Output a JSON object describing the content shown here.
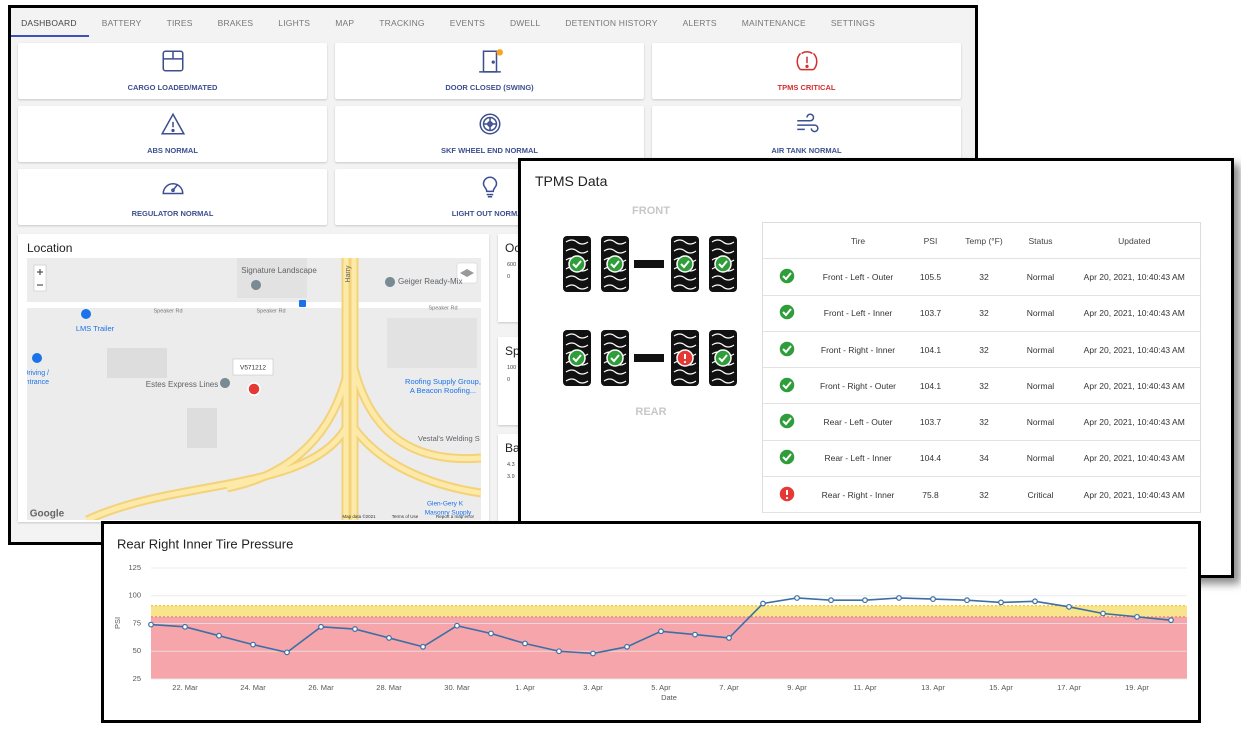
{
  "nav": {
    "tabs": [
      "DASHBOARD",
      "BATTERY",
      "TIRES",
      "BRAKES",
      "LIGHTS",
      "MAP",
      "TRACKING",
      "EVENTS",
      "DWELL",
      "DETENTION HISTORY",
      "ALERTS",
      "MAINTENANCE",
      "SETTINGS"
    ],
    "active": 0,
    "active_color": "#3f51b5"
  },
  "tiles": [
    {
      "label": "CARGO LOADED/MATED",
      "color": "#3d4f8f"
    },
    {
      "label": "DOOR CLOSED (SWING)",
      "color": "#3d4f8f"
    },
    {
      "label": "TPMS CRITICAL",
      "color": "#d32f2f"
    },
    {
      "label": "ABS NORMAL",
      "color": "#3d4f8f"
    },
    {
      "label": "SKF WHEEL END NORMAL",
      "color": "#3d4f8f"
    },
    {
      "label": "AIR TANK NORMAL",
      "color": "#3d4f8f"
    },
    {
      "label": "REGULATOR NORMAL",
      "color": "#3d4f8f"
    },
    {
      "label": "LIGHT OUT NORMAL",
      "color": "#3d4f8f"
    }
  ],
  "location": {
    "title": "Location",
    "map_labels": [
      "Signature Landscape",
      "Geiger Ready-Mix",
      "Speaker Rd",
      "Speaker Rd",
      "Speaker Rd",
      "LMS Trailer",
      "Harry",
      "Estes Express Lines",
      "V571212",
      "Roofing Supply Group,",
      "A Beacon Roofing...",
      "Vestal's Welding S",
      "Glen-Gery K",
      "Masonry Supply",
      "Driving /",
      "Entrance",
      "Google",
      "Map data ©2021",
      "Terms of Use",
      "Report a map error"
    ]
  },
  "side_panels": [
    {
      "title": "Oc",
      "ticks": [
        600,
        0
      ]
    },
    {
      "title": "Sp",
      "ticks": [
        100,
        0
      ]
    },
    {
      "title": "Ba",
      "ticks": [
        4.3,
        3.9
      ]
    }
  ],
  "tpms": {
    "title": "TPMS Data",
    "front_label": "FRONT",
    "rear_label": "REAR",
    "columns": [
      "Tire",
      "PSI",
      "Temp (°F)",
      "Status",
      "Updated"
    ],
    "rows": [
      {
        "tire": "Front - Left - Outer",
        "psi": 105.5,
        "temp": 32,
        "status": "Normal",
        "updated": "Apr 20, 2021, 10:40:43 AM",
        "alert": false
      },
      {
        "tire": "Front - Left - Inner",
        "psi": 103.7,
        "temp": 32,
        "status": "Normal",
        "updated": "Apr 20, 2021, 10:40:43 AM",
        "alert": false
      },
      {
        "tire": "Front - Right - Inner",
        "psi": 104.1,
        "temp": 32,
        "status": "Normal",
        "updated": "Apr 20, 2021, 10:40:43 AM",
        "alert": false
      },
      {
        "tire": "Front - Right - Outer",
        "psi": 104.1,
        "temp": 32,
        "status": "Normal",
        "updated": "Apr 20, 2021, 10:40:43 AM",
        "alert": false
      },
      {
        "tire": "Rear - Left - Outer",
        "psi": 103.7,
        "temp": 32,
        "status": "Normal",
        "updated": "Apr 20, 2021, 10:40:43 AM",
        "alert": false
      },
      {
        "tire": "Rear - Left - Inner",
        "psi": 104.4,
        "temp": 34,
        "status": "Normal",
        "updated": "Apr 20, 2021, 10:40:43 AM",
        "alert": false
      },
      {
        "tire": "Rear - Right - Inner",
        "psi": 75.8,
        "temp": 32,
        "status": "Critical",
        "updated": "Apr 20, 2021, 10:40:43 AM",
        "alert": true
      }
    ]
  },
  "pressure_chart": {
    "type": "line",
    "title": "Rear Right Inner Tire Pressure",
    "x_label": "Date",
    "y_label": "PSI",
    "categories": [
      null,
      "22. Mar",
      null,
      "24. Mar",
      null,
      "26. Mar",
      null,
      "28. Mar",
      null,
      "30. Mar",
      null,
      "1. Apr",
      null,
      "3. Apr",
      null,
      "5. Apr",
      null,
      "7. Apr",
      null,
      "9. Apr",
      null,
      "11. Apr",
      null,
      "13. Apr",
      null,
      "15. Apr",
      null,
      "17. Apr",
      null,
      "19. Apr",
      null
    ],
    "values": [
      74,
      72,
      64,
      56,
      49,
      72,
      70,
      62,
      54,
      73,
      66,
      57,
      50,
      48,
      54,
      68,
      65,
      62,
      93,
      98,
      96,
      96,
      98,
      97,
      96,
      94,
      95,
      90,
      84,
      81,
      78
    ],
    "color": "#3b6fa6",
    "ylim": [
      25,
      125
    ],
    "yticks": [
      25,
      50,
      75,
      100,
      125
    ],
    "grid": true,
    "critical_below": 81,
    "warning_below": 91,
    "critical_color": "#f6a6aa",
    "warning_color": "#f8e48a"
  }
}
